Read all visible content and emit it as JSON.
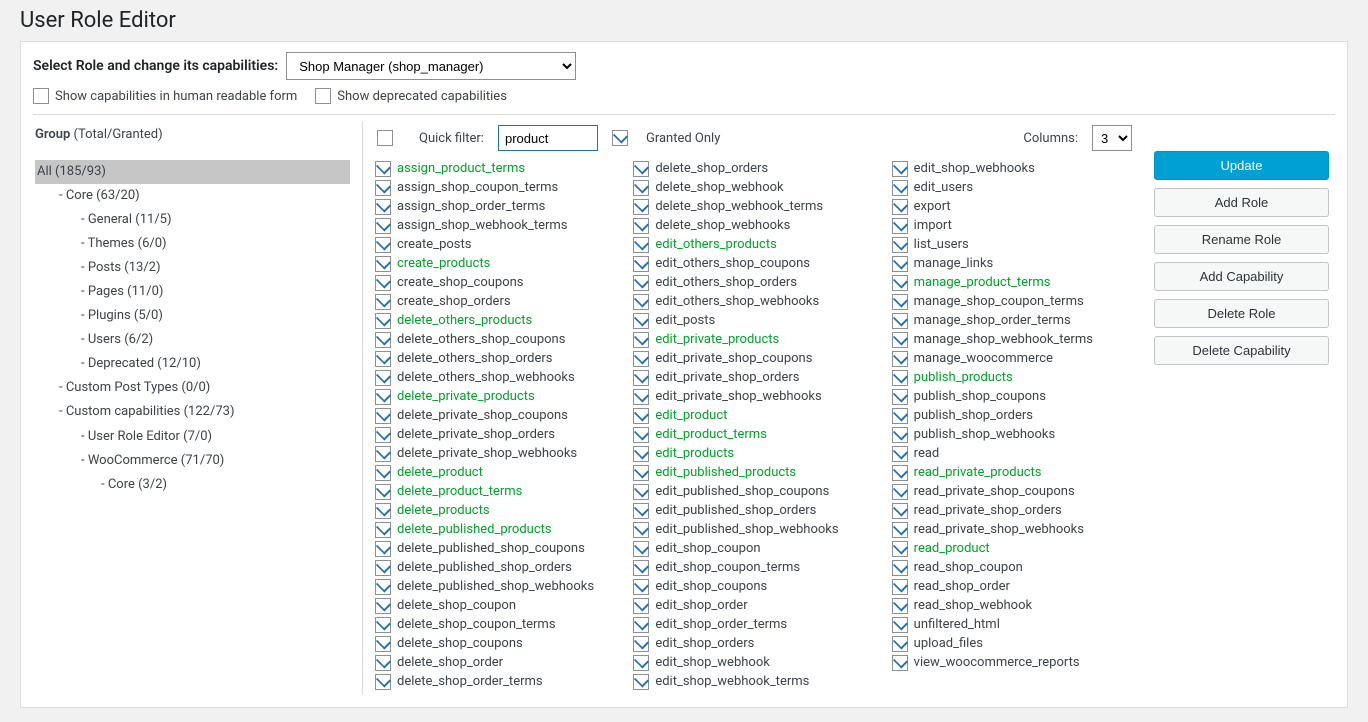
{
  "page_title": "User Role Editor",
  "role_selector": {
    "label": "Select Role and change its capabilities:",
    "selected": "Shop Manager (shop_manager)"
  },
  "options": {
    "human_readable_label": "Show capabilities in human readable form",
    "human_readable_checked": false,
    "deprecated_label": "Show deprecated capabilities",
    "deprecated_checked": false
  },
  "group_header": {
    "title": "Group",
    "counts": "(Total/Granted)"
  },
  "tree": [
    {
      "label": "All (185/93)",
      "level": 0,
      "selected": true,
      "dash": false
    },
    {
      "label": "Core (63/20)",
      "level": 1,
      "dash": true
    },
    {
      "label": "General (11/5)",
      "level": 2,
      "dash": true
    },
    {
      "label": "Themes (6/0)",
      "level": 2,
      "dash": true
    },
    {
      "label": "Posts (13/2)",
      "level": 2,
      "dash": true
    },
    {
      "label": "Pages (11/0)",
      "level": 2,
      "dash": true
    },
    {
      "label": "Plugins (5/0)",
      "level": 2,
      "dash": true
    },
    {
      "label": "Users (6/2)",
      "level": 2,
      "dash": true
    },
    {
      "label": "Deprecated (12/10)",
      "level": 2,
      "dash": true
    },
    {
      "label": "Custom Post Types (0/0)",
      "level": 1,
      "dash": true
    },
    {
      "label": "Custom capabilities (122/73)",
      "level": 1,
      "dash": true
    },
    {
      "label": "User Role Editor (7/0)",
      "level": 2,
      "dash": true
    },
    {
      "label": "WooCommerce (71/70)",
      "level": 2,
      "dash": true
    },
    {
      "label": "Core (3/2)",
      "level": 3,
      "dash": true
    }
  ],
  "filterbar": {
    "select_all_checked": false,
    "quick_filter_label": "Quick filter:",
    "quick_filter_value": "product",
    "granted_only_label": "Granted Only",
    "granted_only_checked": true,
    "columns_label": "Columns:",
    "columns_value": "3"
  },
  "capability_columns": [
    [
      "assign_product_terms",
      "assign_shop_coupon_terms",
      "assign_shop_order_terms",
      "assign_shop_webhook_terms",
      "create_posts",
      "create_products",
      "create_shop_coupons",
      "create_shop_orders",
      "delete_others_products",
      "delete_others_shop_coupons",
      "delete_others_shop_orders",
      "delete_others_shop_webhooks",
      "delete_private_products",
      "delete_private_shop_coupons",
      "delete_private_shop_orders",
      "delete_private_shop_webhooks",
      "delete_product",
      "delete_product_terms",
      "delete_products",
      "delete_published_products",
      "delete_published_shop_coupons",
      "delete_published_shop_orders",
      "delete_published_shop_webhooks",
      "delete_shop_coupon",
      "delete_shop_coupon_terms",
      "delete_shop_coupons",
      "delete_shop_order",
      "delete_shop_order_terms"
    ],
    [
      "delete_shop_orders",
      "delete_shop_webhook",
      "delete_shop_webhook_terms",
      "delete_shop_webhooks",
      "edit_others_products",
      "edit_others_shop_coupons",
      "edit_others_shop_orders",
      "edit_others_shop_webhooks",
      "edit_posts",
      "edit_private_products",
      "edit_private_shop_coupons",
      "edit_private_shop_orders",
      "edit_private_shop_webhooks",
      "edit_product",
      "edit_product_terms",
      "edit_products",
      "edit_published_products",
      "edit_published_shop_coupons",
      "edit_published_shop_orders",
      "edit_published_shop_webhooks",
      "edit_shop_coupon",
      "edit_shop_coupon_terms",
      "edit_shop_coupons",
      "edit_shop_order",
      "edit_shop_order_terms",
      "edit_shop_orders",
      "edit_shop_webhook",
      "edit_shop_webhook_terms"
    ],
    [
      "edit_shop_webhooks",
      "edit_users",
      "export",
      "import",
      "list_users",
      "manage_links",
      "manage_product_terms",
      "manage_shop_coupon_terms",
      "manage_shop_order_terms",
      "manage_shop_webhook_terms",
      "manage_woocommerce",
      "publish_products",
      "publish_shop_coupons",
      "publish_shop_orders",
      "publish_shop_webhooks",
      "read",
      "read_private_products",
      "read_private_shop_coupons",
      "read_private_shop_orders",
      "read_private_shop_webhooks",
      "read_product",
      "read_shop_coupon",
      "read_shop_order",
      "read_shop_webhook",
      "unfiltered_html",
      "upload_files",
      "view_woocommerce_reports"
    ]
  ],
  "highlight_substring": "product",
  "checkbox_accent": "#2271b1",
  "match_color": "#00a32a",
  "buttons": {
    "update": "Update",
    "add_role": "Add Role",
    "rename_role": "Rename Role",
    "add_capability": "Add Capability",
    "delete_role": "Delete Role",
    "delete_capability": "Delete Capability"
  }
}
